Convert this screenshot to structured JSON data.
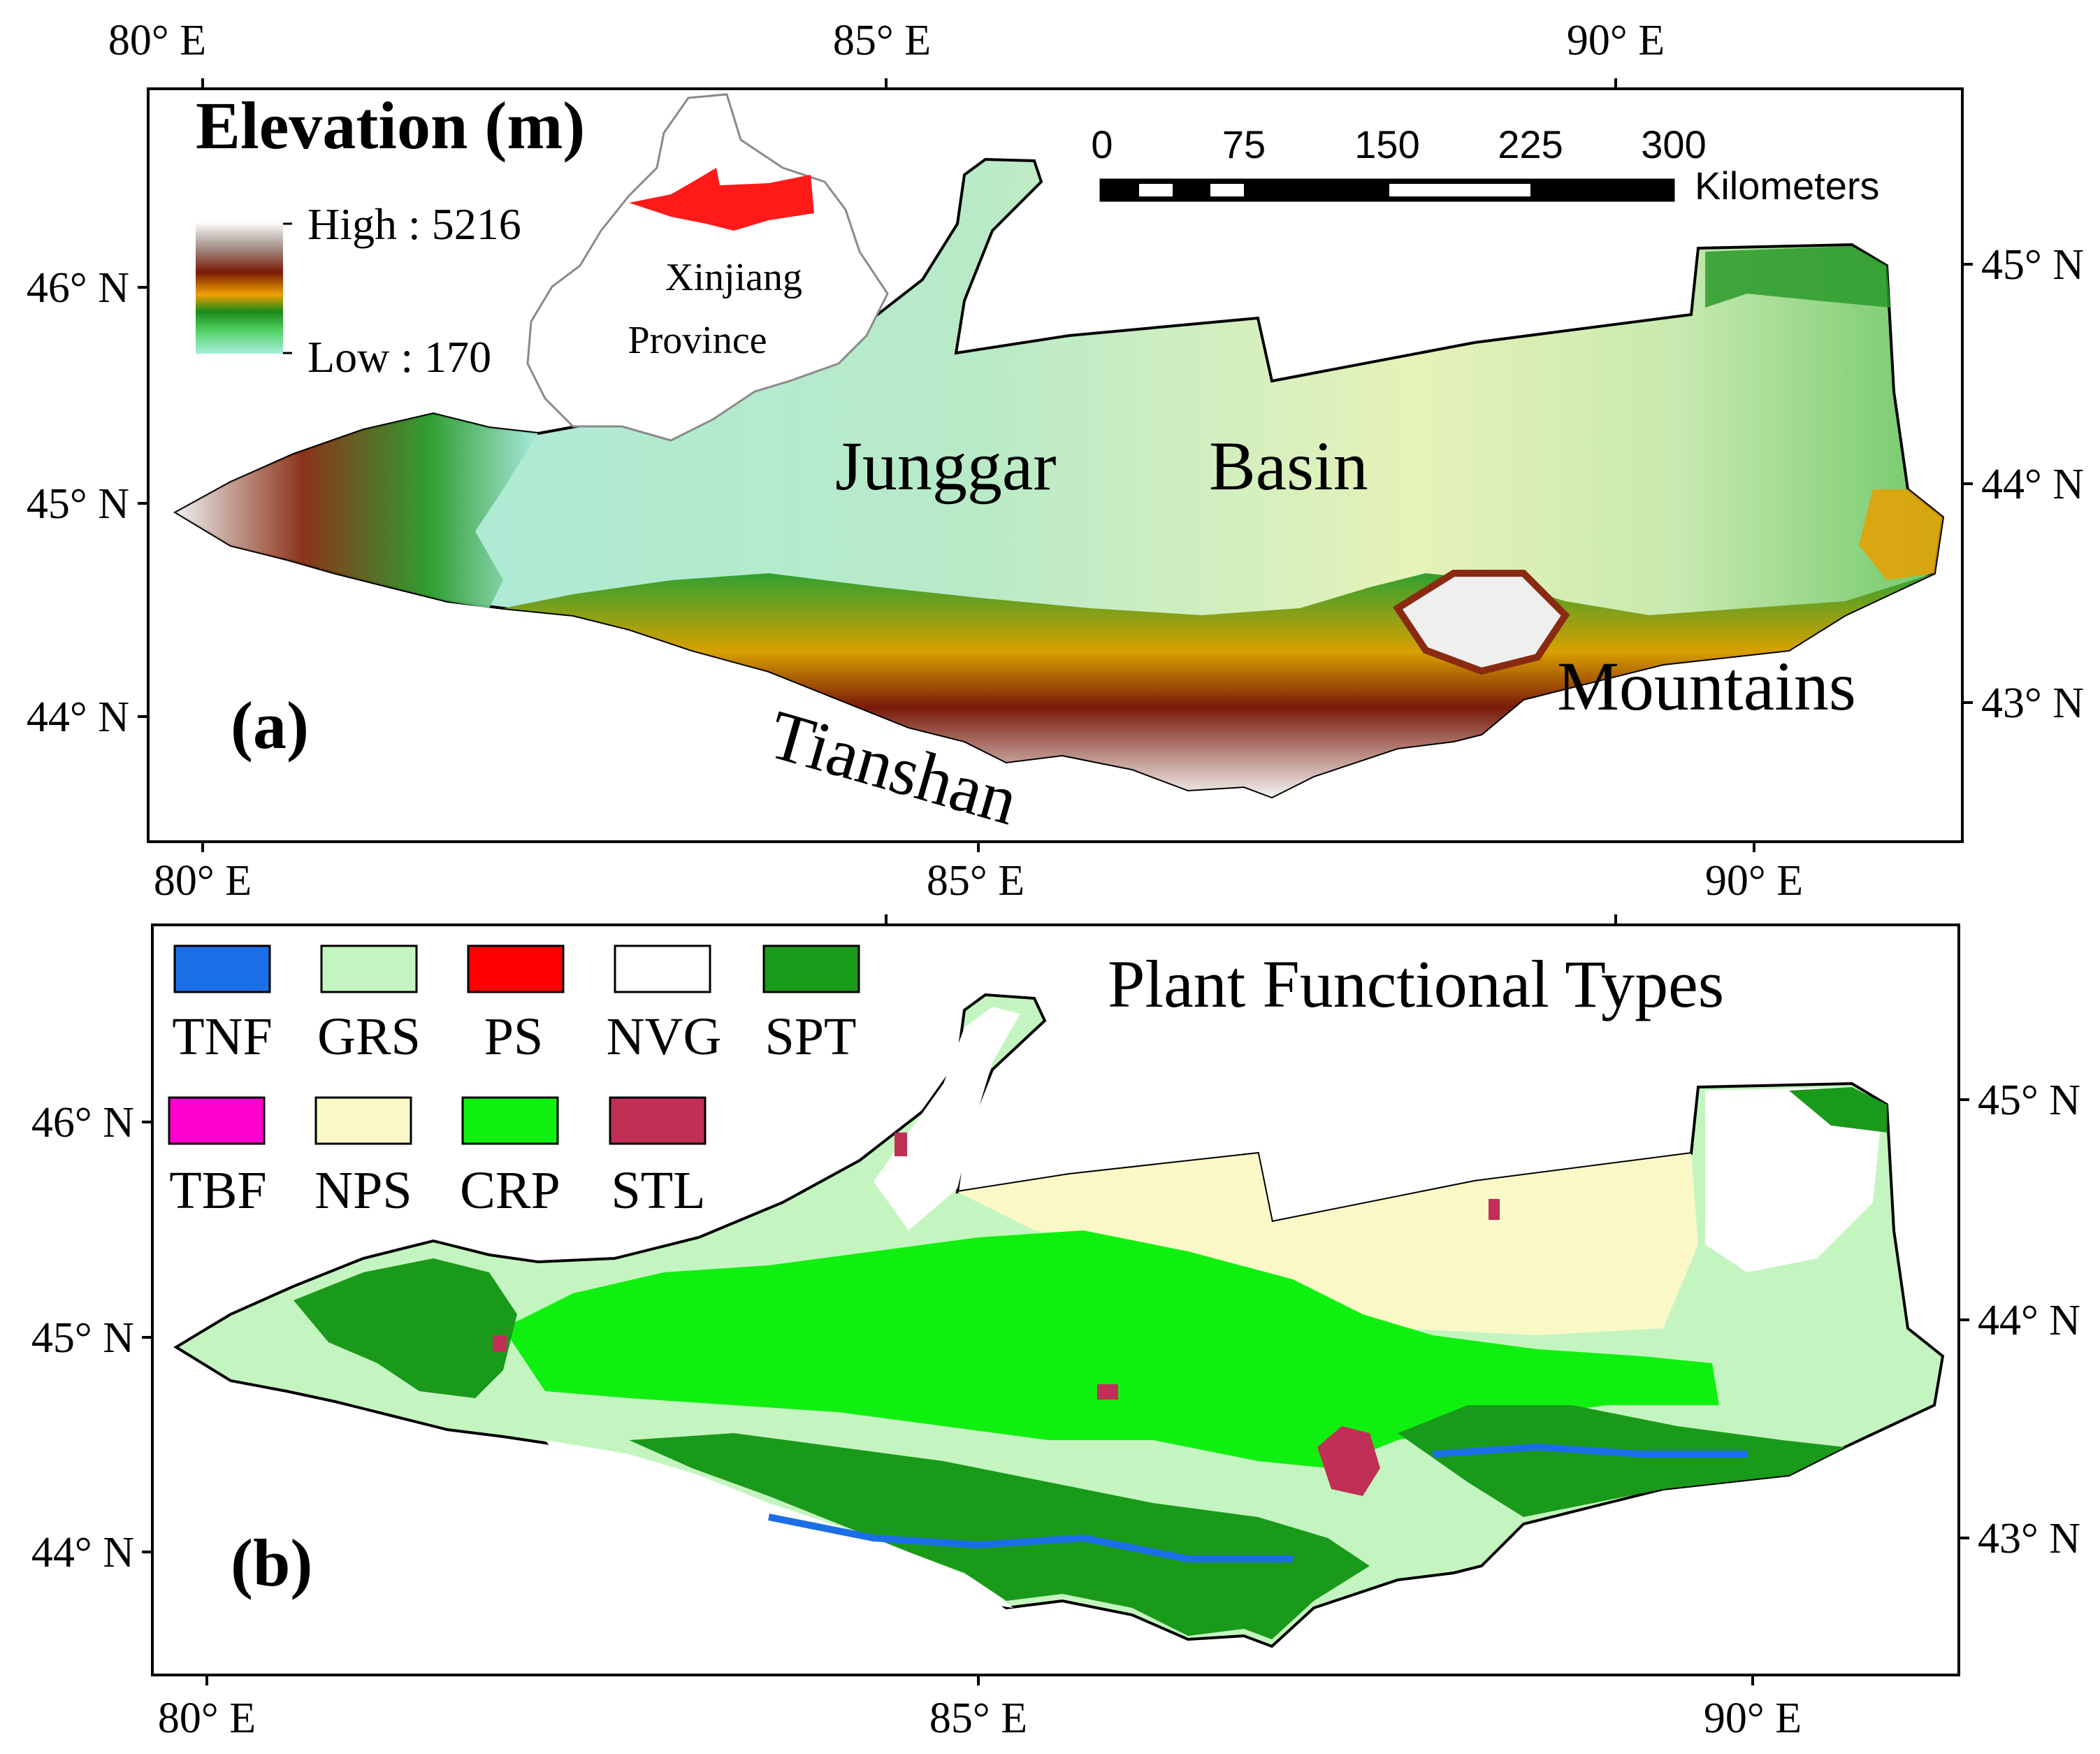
{
  "panel_a": {
    "title": "Elevation (m)",
    "label": "(a)",
    "legend": {
      "high": "High : 5216",
      "low": "Low : 170",
      "high_value": 5216,
      "low_value": 170
    },
    "inset": {
      "line1": "Xinjiang",
      "line2": "Province"
    },
    "scale_bar": {
      "ticks": [
        "0",
        "75",
        "150",
        "225",
        "300"
      ],
      "unit": "Kilometers"
    },
    "place_labels": {
      "junggar": "Junggar",
      "basin": "Basin",
      "mountains": "Mountains",
      "tianshan": "Tianshan"
    },
    "lon_top": [
      "80° E",
      "85° E",
      "90° E"
    ],
    "lon_bottom": [
      "80° E",
      "85° E",
      "90° E"
    ],
    "lat_left": [
      "46° N",
      "45° N",
      "44° N"
    ],
    "lat_right": [
      "45° N",
      "44° N",
      "43° N"
    ]
  },
  "panel_b": {
    "title": "Plant Functional Types",
    "label": "(b)",
    "legend": [
      {
        "code": "TNF",
        "color": "#1a6fe6"
      },
      {
        "code": "GRS",
        "color": "#c4f5c0"
      },
      {
        "code": "PS",
        "color": "#ff0000"
      },
      {
        "code": "NVG",
        "color": "#ffffff"
      },
      {
        "code": "SPT",
        "color": "#1a9a1a"
      },
      {
        "code": "TBF",
        "color": "#ff00d0"
      },
      {
        "code": "NPS",
        "color": "#fbf8c8"
      },
      {
        "code": "CRP",
        "color": "#10f010"
      },
      {
        "code": "STL",
        "color": "#c03056"
      }
    ],
    "lon_bottom": [
      "80° E",
      "85° E",
      "90° E"
    ],
    "lat_left": [
      "46° N",
      "45° N",
      "44° N"
    ],
    "lat_right": [
      "45° N",
      "44° N",
      "43° N"
    ]
  }
}
